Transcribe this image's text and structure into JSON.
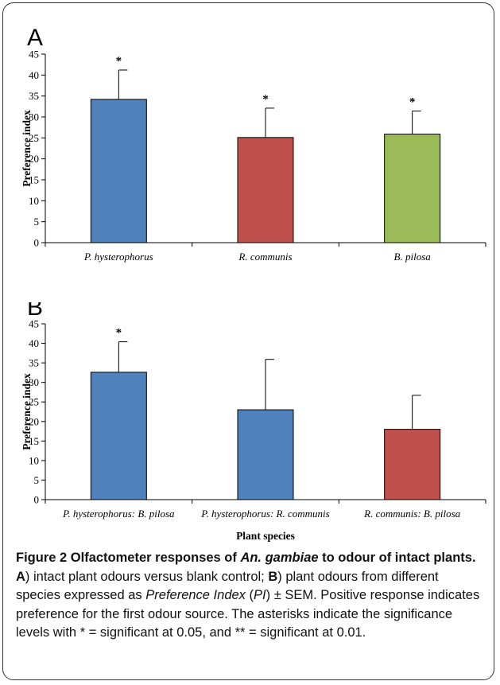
{
  "chart_data": [
    {
      "type": "bar",
      "panel_label": "A",
      "ylabel": "Preference index",
      "xlabel": "",
      "ylim": [
        0,
        45
      ],
      "yticks": [
        0,
        5,
        10,
        15,
        20,
        25,
        30,
        35,
        40,
        45
      ],
      "categories": [
        "P. hysterophorus",
        "R. communis",
        "B. pilosa"
      ],
      "values": [
        34.2,
        25.1,
        25.9
      ],
      "errors": [
        7.0,
        7.0,
        5.5
      ],
      "significance": [
        "*",
        "*",
        "*"
      ],
      "bar_colors": [
        "#4f81bd",
        "#c0504d",
        "#9bbb59"
      ]
    },
    {
      "type": "bar",
      "panel_label": "B",
      "ylabel": "Preference index",
      "xlabel": "Plant species",
      "ylim": [
        0,
        45
      ],
      "yticks": [
        0,
        5,
        10,
        15,
        20,
        25,
        30,
        35,
        40,
        45
      ],
      "categories": [
        "P. hysterophorus: B. pilosa",
        "P. hysterophorus: R. communis",
        "R. communis: B. pilosa"
      ],
      "values": [
        32.6,
        23.0,
        18.0
      ],
      "errors": [
        7.8,
        12.9,
        8.7
      ],
      "significance": [
        "*",
        "",
        ""
      ],
      "bar_colors": [
        "#4f81bd",
        "#4f81bd",
        "#c0504d"
      ]
    }
  ],
  "caption": {
    "figure_label": "Figure 2",
    "title_pre": "Olfactometer responses of ",
    "title_species": "An. gambiae",
    "title_post": " to odour of intact plants.",
    "a_label": "A",
    "a_text": ") intact plant odours versus blank control; ",
    "b_label": "B",
    "b_text": ") plant odours from different species expressed as ",
    "pi_term": "Preference Index",
    "pi_open": " (",
    "pi_abbr": "PI",
    "pi_close": ") ± SEM. Positive response indicates preference for the first odour source. The asterisks indicate the significance levels with * = significant at 0.05, and ** = significant at 0.01."
  }
}
